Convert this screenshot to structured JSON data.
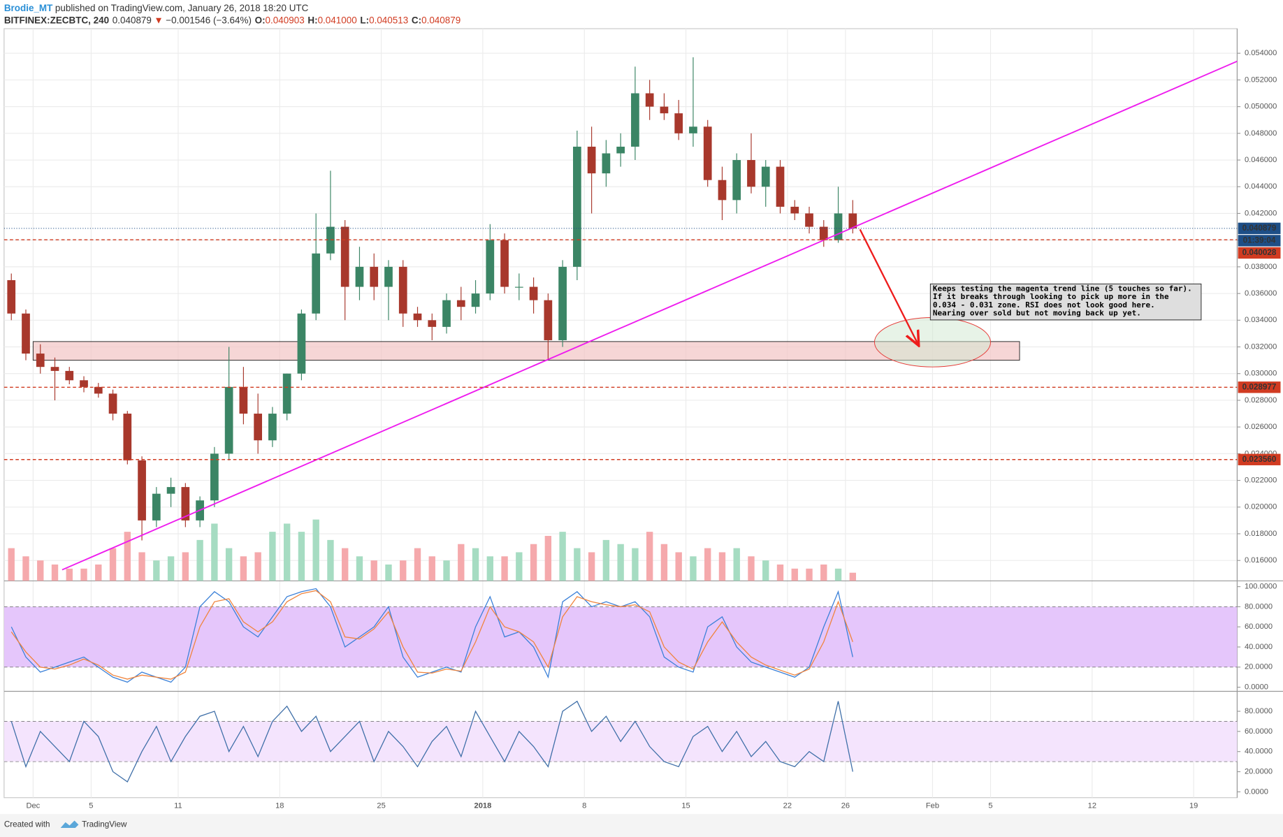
{
  "header": {
    "author": "Brodie_MT",
    "published": "published on TradingView.com, January 26, 2018 18:20 UTC"
  },
  "chart_data": {
    "type": "candlestick",
    "symbol": "BITFINEX:ZECBTC, 240",
    "quote": {
      "last": "0.040879",
      "arrow": "▼",
      "change": "−0.001546 (−3.64%)",
      "ohlc": [
        {
          "label": "O:",
          "value": "0.040903"
        },
        {
          "label": "H:",
          "value": "0.041000"
        },
        {
          "label": "L:",
          "value": "0.040513"
        },
        {
          "label": "C:",
          "value": "0.040879"
        }
      ]
    },
    "x": [
      "2017-11-29",
      "2017-11-30",
      "2017-12-01",
      "2017-12-02",
      "2017-12-03",
      "2017-12-04",
      "2017-12-05",
      "2017-12-06",
      "2017-12-07",
      "2017-12-08",
      "2017-12-09",
      "2017-12-10",
      "2017-12-11",
      "2017-12-12",
      "2017-12-13",
      "2017-12-14",
      "2017-12-15",
      "2017-12-16",
      "2017-12-17",
      "2017-12-18",
      "2017-12-19",
      "2017-12-20",
      "2017-12-21",
      "2017-12-22",
      "2017-12-23",
      "2017-12-24",
      "2017-12-25",
      "2017-12-26",
      "2017-12-27",
      "2017-12-28",
      "2017-12-29",
      "2017-12-30",
      "2017-12-31",
      "2018-01-01",
      "2018-01-02",
      "2018-01-03",
      "2018-01-04",
      "2018-01-05",
      "2018-01-06",
      "2018-01-07",
      "2018-01-08",
      "2018-01-09",
      "2018-01-10",
      "2018-01-11",
      "2018-01-12",
      "2018-01-13",
      "2018-01-14",
      "2018-01-15",
      "2018-01-16",
      "2018-01-17",
      "2018-01-18",
      "2018-01-19",
      "2018-01-20",
      "2018-01-21",
      "2018-01-22",
      "2018-01-23",
      "2018-01-24",
      "2018-01-25",
      "2018-01-26"
    ],
    "open": [
      0.037,
      0.0345,
      0.0315,
      0.0305,
      0.0302,
      0.0295,
      0.029,
      0.0285,
      0.027,
      0.0235,
      0.019,
      0.021,
      0.0215,
      0.019,
      0.0205,
      0.024,
      0.029,
      0.027,
      0.025,
      0.027,
      0.03,
      0.0345,
      0.039,
      0.041,
      0.0365,
      0.038,
      0.0365,
      0.038,
      0.0345,
      0.034,
      0.0335,
      0.0355,
      0.035,
      0.036,
      0.04,
      0.0365,
      0.0365,
      0.0355,
      0.0325,
      0.038,
      0.047,
      0.045,
      0.0465,
      0.047,
      0.051,
      0.05,
      0.0495,
      0.048,
      0.0485,
      0.0445,
      0.043,
      0.046,
      0.044,
      0.0455,
      0.0425,
      0.042,
      0.041,
      0.04,
      0.042
    ],
    "high": [
      0.0375,
      0.0348,
      0.0322,
      0.0312,
      0.0305,
      0.0298,
      0.0293,
      0.0288,
      0.0272,
      0.0238,
      0.0215,
      0.0222,
      0.0218,
      0.0208,
      0.0245,
      0.032,
      0.0305,
      0.0285,
      0.0275,
      0.03,
      0.0348,
      0.042,
      0.0452,
      0.0415,
      0.0395,
      0.039,
      0.0385,
      0.0385,
      0.035,
      0.0345,
      0.036,
      0.0365,
      0.037,
      0.0412,
      0.0405,
      0.0375,
      0.0372,
      0.036,
      0.0385,
      0.0482,
      0.0485,
      0.0475,
      0.048,
      0.053,
      0.052,
      0.051,
      0.0505,
      0.0537,
      0.049,
      0.0455,
      0.0465,
      0.048,
      0.046,
      0.046,
      0.043,
      0.0425,
      0.0415,
      0.044,
      0.043
    ],
    "low": [
      0.034,
      0.031,
      0.03,
      0.028,
      0.0292,
      0.0286,
      0.0282,
      0.0265,
      0.0232,
      0.0175,
      0.0185,
      0.02,
      0.0185,
      0.0185,
      0.02,
      0.0235,
      0.0262,
      0.024,
      0.0245,
      0.0265,
      0.0295,
      0.034,
      0.0385,
      0.034,
      0.0355,
      0.0355,
      0.034,
      0.0335,
      0.0335,
      0.0325,
      0.033,
      0.034,
      0.0345,
      0.0355,
      0.036,
      0.0355,
      0.0345,
      0.031,
      0.032,
      0.037,
      0.042,
      0.044,
      0.0455,
      0.046,
      0.049,
      0.049,
      0.0475,
      0.047,
      0.044,
      0.0415,
      0.042,
      0.0435,
      0.0425,
      0.042,
      0.0415,
      0.0405,
      0.0395,
      0.0398,
      0.0405
    ],
    "close": [
      0.0345,
      0.0315,
      0.0305,
      0.0302,
      0.0295,
      0.029,
      0.0285,
      0.027,
      0.0235,
      0.019,
      0.021,
      0.0215,
      0.019,
      0.0205,
      0.024,
      0.029,
      0.027,
      0.025,
      0.027,
      0.03,
      0.0345,
      0.039,
      0.041,
      0.0365,
      0.038,
      0.0365,
      0.038,
      0.0345,
      0.034,
      0.0335,
      0.0355,
      0.035,
      0.036,
      0.04,
      0.0365,
      0.0365,
      0.0355,
      0.0325,
      0.038,
      0.047,
      0.045,
      0.0465,
      0.047,
      0.051,
      0.05,
      0.0495,
      0.048,
      0.0485,
      0.0445,
      0.043,
      0.046,
      0.044,
      0.0455,
      0.0425,
      0.042,
      0.041,
      0.04,
      0.042,
      0.040879
    ],
    "colors": {
      "up": "#3b8565",
      "down": "#a8382c",
      "volume_up": "#a6dcc2",
      "volume_down": "#f5a9ac"
    },
    "volume": [
      40,
      30,
      25,
      20,
      15,
      15,
      20,
      40,
      60,
      35,
      25,
      30,
      35,
      50,
      70,
      40,
      30,
      35,
      60,
      70,
      60,
      75,
      50,
      40,
      30,
      25,
      20,
      25,
      40,
      30,
      25,
      45,
      40,
      30,
      30,
      35,
      45,
      55,
      60,
      40,
      35,
      50,
      45,
      40,
      60,
      45,
      35,
      30,
      40,
      35,
      40,
      30,
      25,
      20,
      15,
      15,
      20,
      15,
      10
    ],
    "xlim": [
      "2017-11-29",
      "2018-02-22"
    ],
    "xticks": [
      {
        "value": "2017-12-01",
        "label": "Dec"
      },
      {
        "value": "2017-12-05",
        "label": "5"
      },
      {
        "value": "2017-12-11",
        "label": "11"
      },
      {
        "value": "2017-12-18",
        "label": "18"
      },
      {
        "value": "2017-12-25",
        "label": "25"
      },
      {
        "value": "2018-01-01",
        "label": "2018"
      },
      {
        "value": "2018-01-08",
        "label": "8"
      },
      {
        "value": "2018-01-15",
        "label": "15"
      },
      {
        "value": "2018-01-22",
        "label": "22"
      },
      {
        "value": "2018-01-26",
        "label": "26"
      },
      {
        "value": "2018-02-01",
        "label": "Feb"
      },
      {
        "value": "2018-02-05",
        "label": "5"
      },
      {
        "value": "2018-02-12",
        "label": "12"
      },
      {
        "value": "2018-02-19",
        "label": "19"
      }
    ],
    "ylim": [
      0.01447,
      0.05584
    ],
    "yticks": [
      {
        "value": 0.054,
        "label": "0.054000"
      },
      {
        "value": 0.052,
        "label": "0.052000"
      },
      {
        "value": 0.05,
        "label": "0.050000"
      },
      {
        "value": 0.048,
        "label": "0.048000"
      },
      {
        "value": 0.046,
        "label": "0.046000"
      },
      {
        "value": 0.044,
        "label": "0.044000"
      },
      {
        "value": 0.042,
        "label": "0.042000"
      },
      {
        "value": 0.04,
        "label": "0.040000"
      },
      {
        "value": 0.038,
        "label": "0.038000"
      },
      {
        "value": 0.036,
        "label": "0.036000"
      },
      {
        "value": 0.034,
        "label": "0.034000"
      },
      {
        "value": 0.032,
        "label": "0.032000"
      },
      {
        "value": 0.03,
        "label": "0.030000"
      },
      {
        "value": 0.028,
        "label": "0.028000"
      },
      {
        "value": 0.026,
        "label": "0.026000"
      },
      {
        "value": 0.024,
        "label": "0.024000"
      },
      {
        "value": 0.022,
        "label": "0.022000"
      },
      {
        "value": 0.02,
        "label": "0.020000"
      },
      {
        "value": 0.018,
        "label": "0.018000"
      },
      {
        "value": 0.016,
        "label": "0.016000"
      }
    ],
    "grid": true,
    "price_lines": [
      {
        "value": 0.040879,
        "label": "0.040879",
        "color": "#1d4e86",
        "countdown": "01:39:04"
      },
      {
        "value": 0.040028,
        "label": "0.040028",
        "color": "#d13b21"
      },
      {
        "value": 0.028977,
        "label": "0.028977",
        "color": "#d13b21"
      },
      {
        "value": 0.02356,
        "label": "0.023560",
        "color": "#d13b21"
      }
    ],
    "annotations": {
      "trend_line": {
        "start": [
          "2017-12-03",
          0.0153
        ],
        "end": [
          "2018-02-22",
          0.0534
        ],
        "color": "#ee1bee"
      },
      "zone": {
        "start": [
          "2017-12-01",
          0.0324
        ],
        "end": [
          "2018-02-07",
          0.031
        ],
        "color": "#f2c4c4"
      },
      "ellipse": {
        "start": [
          "2018-01-28",
          0.0342
        ],
        "end": [
          "2018-02-05",
          0.0305
        ],
        "color": "#e53935"
      },
      "arrow": {
        "start": [
          "2018-01-27",
          0.0408
        ],
        "end": [
          "2018-01-31",
          0.0322
        ],
        "color": "#ee1c1c"
      },
      "note": [
        "Keeps testing the magenta trend line (5 touches so far).",
        "If it breaks through looking to pick up more in the",
        "0.034 - 0.031 zone. RSI does not look good here.",
        "Nearing over sold but not moving back up yet."
      ]
    },
    "panes": [
      {
        "ylim": [
          -4.1,
          104.9
        ],
        "band": [
          20,
          80
        ],
        "band_color": "#e5c6fb",
        "yticks": [
          {
            "value": 100,
            "label": "100.0000"
          },
          {
            "value": 80,
            "label": "80.0000"
          },
          {
            "value": 60,
            "label": "60.0000"
          },
          {
            "value": 40,
            "label": "40.0000"
          },
          {
            "value": 20,
            "label": "20.0000"
          },
          {
            "value": 0,
            "label": "0.0000"
          }
        ],
        "series": [
          {
            "color": "#3a80d8",
            "values": [
              60,
              30,
              15,
              20,
              25,
              30,
              20,
              10,
              5,
              15,
              10,
              5,
              20,
              80,
              95,
              85,
              60,
              50,
              70,
              90,
              95,
              98,
              80,
              40,
              50,
              60,
              80,
              30,
              10,
              15,
              20,
              15,
              60,
              90,
              50,
              55,
              40,
              10,
              85,
              95,
              80,
              85,
              80,
              85,
              70,
              30,
              20,
              15,
              60,
              70,
              40,
              25,
              20,
              15,
              10,
              20,
              60,
              95,
              30
            ]
          },
          {
            "color": "#f0843c",
            "values": [
              55,
              35,
              20,
              18,
              22,
              28,
              22,
              12,
              8,
              12,
              10,
              8,
              15,
              60,
              85,
              88,
              65,
              55,
              65,
              85,
              93,
              96,
              85,
              50,
              48,
              58,
              75,
              40,
              15,
              14,
              18,
              16,
              45,
              80,
              60,
              55,
              45,
              20,
              70,
              90,
              85,
              82,
              80,
              82,
              75,
              40,
              25,
              18,
              45,
              65,
              45,
              30,
              22,
              17,
              12,
              18,
              45,
              85,
              45
            ]
          }
        ]
      },
      {
        "ylim": [
          -5.8,
          99
        ],
        "band": [
          30,
          70
        ],
        "band_color": "#f4e4fd",
        "yticks": [
          {
            "value": 80,
            "label": "80.0000"
          },
          {
            "value": 60,
            "label": "60.0000"
          },
          {
            "value": 40,
            "label": "40.0000"
          },
          {
            "value": 20,
            "label": "20.0000"
          },
          {
            "value": 0,
            "label": "0.0000"
          }
        ],
        "series": [
          {
            "color": "#3f6fa8",
            "values": [
              70,
              25,
              60,
              45,
              30,
              70,
              55,
              20,
              10,
              40,
              65,
              30,
              55,
              75,
              80,
              40,
              65,
              35,
              70,
              85,
              60,
              75,
              40,
              55,
              70,
              30,
              60,
              45,
              25,
              50,
              65,
              35,
              80,
              55,
              30,
              60,
              45,
              25,
              80,
              90,
              60,
              75,
              50,
              70,
              45,
              30,
              25,
              55,
              65,
              40,
              60,
              35,
              50,
              30,
              25,
              40,
              30,
              90,
              20
            ]
          }
        ]
      }
    ]
  },
  "footer": {
    "created": "Created with",
    "brand": "TradingView"
  }
}
